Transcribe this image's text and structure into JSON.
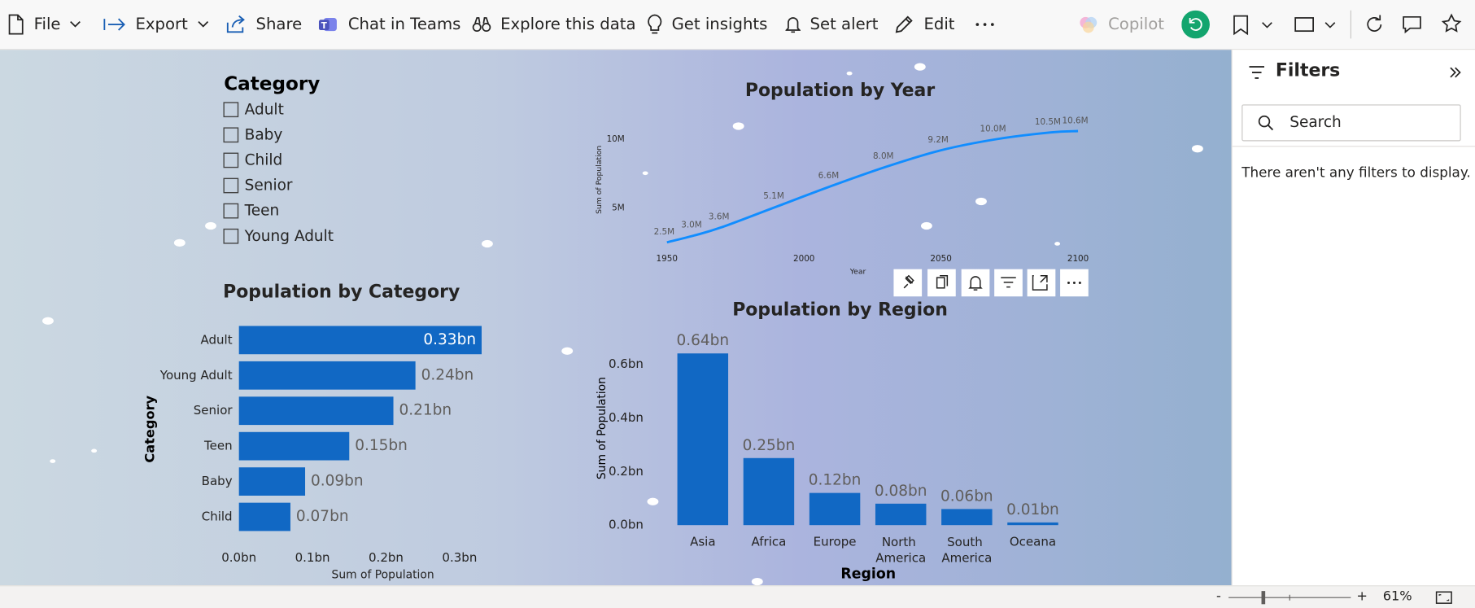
{
  "toolbar": {
    "items": [
      "File",
      "Export",
      "Share",
      "Chat in Teams",
      "Explore this data",
      "Get insights",
      "Set alert",
      "Edit"
    ],
    "copilot": "Copilot"
  },
  "slicer": {
    "title": "Category",
    "items": [
      "Adult",
      "Baby",
      "Child",
      "Senior",
      "Teen",
      "Young Adult"
    ]
  },
  "chart_data": [
    {
      "type": "line",
      "title": "Population by Year",
      "x_label": "Year",
      "y_label": "Sum of Population",
      "x": [
        1950,
        1960,
        1970,
        1990,
        2010,
        2030,
        2050,
        2070,
        2090,
        2100
      ],
      "values": [
        2500000,
        3000000,
        3600000,
        5100000,
        6600000,
        8000000,
        9200000,
        10000000,
        10500000,
        10600000
      ],
      "value_labels": [
        "2.5M",
        "3.0M",
        "3.6M",
        "5.1M",
        "6.6M",
        "8.0M",
        "9.2M",
        "10.0M",
        "10.5M",
        "10.6M"
      ],
      "color": "#118dff",
      "xlim": [
        1950,
        2100
      ],
      "xticks": [
        1950,
        2000,
        2050,
        2100
      ],
      "ylim": [
        0,
        11000000
      ],
      "yticks": [
        {
          "value": 5000000,
          "label": "5M"
        },
        {
          "value": 10000000,
          "label": "10M"
        }
      ]
    },
    {
      "type": "bar",
      "title": "Population by Category",
      "x_label": "Sum of Population",
      "y_label": "Category",
      "categories": [
        "Adult",
        "Young Adult",
        "Senior",
        "Teen",
        "Baby",
        "Child"
      ],
      "values": [
        330000000,
        240000000,
        210000000,
        150000000,
        90000000,
        70000000
      ],
      "value_labels": [
        "0.33bn",
        "0.24bn",
        "0.21bn",
        "0.15bn",
        "0.09bn",
        "0.07bn"
      ],
      "color": "#1168c4",
      "xlim": [
        0,
        330000000
      ],
      "xticks": [
        {
          "value": 0,
          "label": "0.0bn"
        },
        {
          "value": 100000000,
          "label": "0.1bn"
        },
        {
          "value": 200000000,
          "label": "0.2bn"
        },
        {
          "value": 300000000,
          "label": "0.3bn"
        }
      ]
    },
    {
      "type": "column",
      "title": "Population by Region",
      "x_label": "Region",
      "y_label": "Sum of Population",
      "categories": [
        "Asia",
        "Africa",
        "Europe",
        "North America",
        "South America",
        "Oceana"
      ],
      "values": [
        640000000,
        250000000,
        120000000,
        80000000,
        60000000,
        10000000
      ],
      "value_labels": [
        "0.64bn",
        "0.25bn",
        "0.12bn",
        "0.08bn",
        "0.06bn",
        "0.01bn"
      ],
      "color": "#1168c4",
      "ylim": [
        0,
        650000000
      ],
      "yticks": [
        {
          "value": 0,
          "label": "0.0bn"
        },
        {
          "value": 200000000,
          "label": "0.2bn"
        },
        {
          "value": 400000000,
          "label": "0.4bn"
        },
        {
          "value": 600000000,
          "label": "0.6bn"
        }
      ]
    }
  ],
  "filters": {
    "title": "Filters",
    "search": "Search",
    "empty_message": "There aren't any filters to display."
  },
  "status_bar": {
    "zoom_out": "-",
    "zoom_in": "+",
    "zoom": "61%"
  }
}
